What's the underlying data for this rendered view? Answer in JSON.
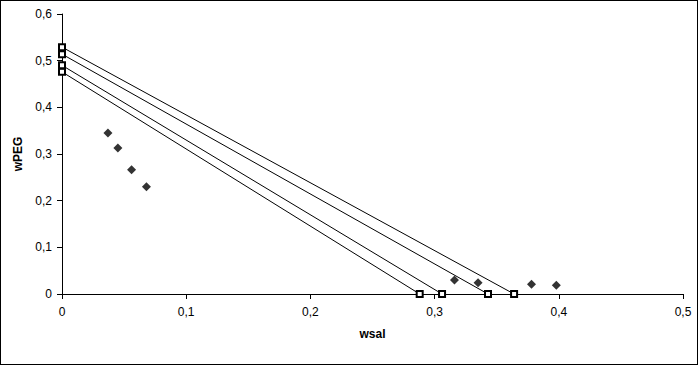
{
  "chart_data": {
    "type": "scatter",
    "x_label": "wsal",
    "y_label": "wPEG",
    "xlim": [
      0,
      0.5
    ],
    "xticks": [
      0,
      {
        "value": 0.1,
        "label": "0,1"
      },
      {
        "value": 0.2,
        "label": "0,2"
      },
      {
        "value": 0.3,
        "label": "0,3"
      },
      {
        "value": 0.4,
        "label": "0,4"
      },
      {
        "value": 0.5,
        "label": "0,5"
      }
    ],
    "ylim": [
      0,
      0.6
    ],
    "yticks": [
      0,
      {
        "value": 0.1,
        "label": "0,1"
      },
      {
        "value": 0.2,
        "label": "0,2"
      },
      {
        "value": 0.3,
        "label": "0,3"
      },
      {
        "value": 0.4,
        "label": "0,4"
      },
      {
        "value": 0.5,
        "label": "0,5"
      },
      {
        "value": 0.6,
        "label": "0,6"
      }
    ],
    "grid": false,
    "series": [
      {
        "type": "scatter",
        "marker": "diamond",
        "color": "#000000",
        "x": [
          0.037,
          0.045,
          0.056,
          0.068,
          0.316,
          0.335,
          0.378,
          0.398
        ],
        "values": [
          0.345,
          0.313,
          0.266,
          0.23,
          0.03,
          0.024,
          0.021,
          0.019
        ]
      },
      {
        "type": "line",
        "marker": "open_square",
        "line_style": "solid",
        "color": "#000000",
        "x": [
          0,
          0.288
        ],
        "values": [
          0.476,
          0
        ]
      },
      {
        "type": "line",
        "marker": "open_square",
        "line_style": "solid",
        "color": "#000000",
        "x": [
          0,
          0.306
        ],
        "values": [
          0.49,
          0
        ]
      },
      {
        "type": "line",
        "marker": "open_square",
        "line_style": "solid",
        "color": "#000000",
        "x": [
          0,
          0.343
        ],
        "values": [
          0.514,
          0
        ]
      },
      {
        "type": "line",
        "marker": "open_square",
        "line_style": "solid",
        "color": "#000000",
        "x": [
          0,
          0.364
        ],
        "values": [
          0.529,
          0
        ]
      }
    ]
  }
}
